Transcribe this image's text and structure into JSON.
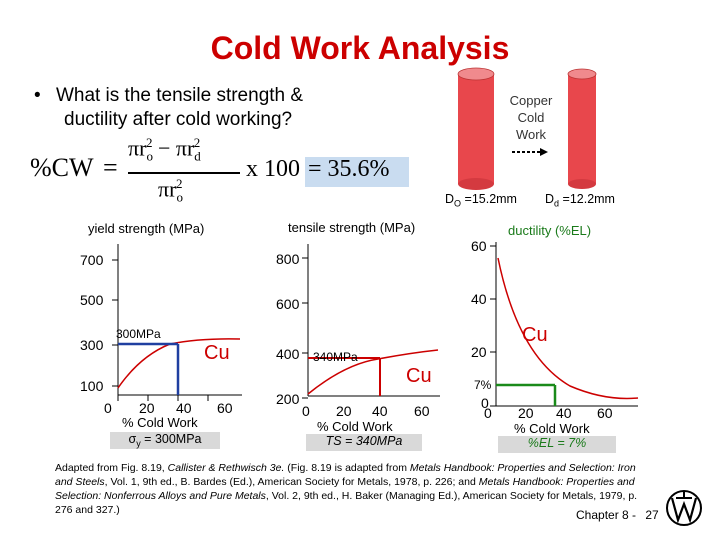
{
  "slide": {
    "title": "Cold Work Analysis",
    "bullet_marker": "•",
    "bullet_line1": "What is the tensile strength &",
    "bullet_line2": "ductility after cold working?",
    "formula": {
      "lhs": "%CW",
      "eq": "=",
      "numerator": "πr",
      "num_sub1": "o",
      "num_sup1": "2",
      "num_minus": " − πr",
      "num_sub2": "d",
      "num_sup2": "2",
      "denominator": "πr",
      "den_sub": "o",
      "den_sup": "2",
      "times": "x 100",
      "result": "= 35.6%"
    },
    "copper": {
      "label_line1": "Copper",
      "label_line2": "Cold",
      "label_line3": "Work",
      "do_label": "D",
      "do_sub": "O",
      "do_value": " =15.2mm",
      "dd_label": "D",
      "dd_sub": "d",
      "dd_value": " =12.2mm",
      "rod_color": "#e8474c"
    },
    "chart_yield": {
      "ylabel": "yield strength (MPa)",
      "yticks": [
        "700",
        "500",
        "300",
        "100"
      ],
      "xticks": [
        "0",
        "20",
        "40",
        "60"
      ],
      "xlabel": "% Cold Work",
      "series_label": "Cu",
      "annotation": "300MPa",
      "result_symbol": "σ",
      "result_sub": "y",
      "result_text": " = 300MPa"
    },
    "chart_tensile": {
      "ylabel": "tensile strength (MPa)",
      "yticks": [
        "800",
        "600",
        "400",
        "200"
      ],
      "xticks": [
        "0",
        "20",
        "40",
        "60"
      ],
      "xlabel": "% Cold Work",
      "series_label": "Cu",
      "annotation": "340MPa",
      "result_text": "TS = 340MPa"
    },
    "chart_ductility": {
      "ylabel": "ductility (%EL)",
      "yticks": [
        "60",
        "40",
        "20",
        "0"
      ],
      "xticks": [
        "0",
        "20",
        "40",
        "60"
      ],
      "xlabel": "% Cold Work",
      "series_label": "Cu",
      "annotation": "7%",
      "result_text": "%EL = 7%"
    },
    "caption": {
      "p1": "Adapted from Fig. 8.19, ",
      "p1i": "Callister & Rethwisch 3e.",
      "p2": " (Fig. 8.19 is adapted from ",
      "p2i": "Metals Handbook:  Properties and Selection:  Iron and Steels",
      "p3": ", Vol. 1, 9th ed., B. Bardes (Ed.), American Society for Metals, 1978, p. 226; and ",
      "p3i": "Metals Handbook:  Properties and Selection:  Nonferrous Alloys and Pure Metals",
      "p4": ", Vol. 2, 9th ed., H. Baker (Managing Ed.), American Society for Metals, 1979, p. 276 and 327.)"
    },
    "footer": {
      "chapter": "Chapter 8 -",
      "page": "27"
    }
  },
  "chart_data": [
    {
      "type": "line",
      "title": "",
      "ylabel": "yield strength (MPa)",
      "xlabel": "% Cold Work",
      "ylim": [
        100,
        800
      ],
      "xlim": [
        0,
        70
      ],
      "series": [
        {
          "name": "Cu",
          "x": [
            0,
            10,
            20,
            35.6,
            50,
            60,
            65
          ],
          "y": [
            100,
            210,
            265,
            300,
            312,
            318,
            320
          ]
        }
      ],
      "markers": [
        {
          "x": 35.6,
          "y": 300,
          "label": "300MPa"
        }
      ]
    },
    {
      "type": "line",
      "title": "",
      "ylabel": "tensile strength (MPa)",
      "xlabel": "% Cold Work",
      "ylim": [
        200,
        900
      ],
      "xlim": [
        0,
        70
      ],
      "series": [
        {
          "name": "Cu",
          "x": [
            0,
            10,
            20,
            35.6,
            50,
            60,
            65
          ],
          "y": [
            210,
            260,
            295,
            340,
            365,
            378,
            384
          ]
        }
      ],
      "markers": [
        {
          "x": 35.6,
          "y": 340,
          "label": "340MPa"
        }
      ]
    },
    {
      "type": "line",
      "title": "",
      "ylabel": "ductility (%EL)",
      "xlabel": "% Cold Work",
      "ylim": [
        0,
        65
      ],
      "xlim": [
        0,
        70
      ],
      "series": [
        {
          "name": "Cu",
          "x": [
            0,
            10,
            20,
            35.6,
            50,
            60,
            65
          ],
          "y": [
            56,
            30,
            15,
            7,
            4,
            3,
            3
          ]
        }
      ],
      "markers": [
        {
          "x": 35.6,
          "y": 7,
          "label": "7%"
        }
      ]
    }
  ]
}
